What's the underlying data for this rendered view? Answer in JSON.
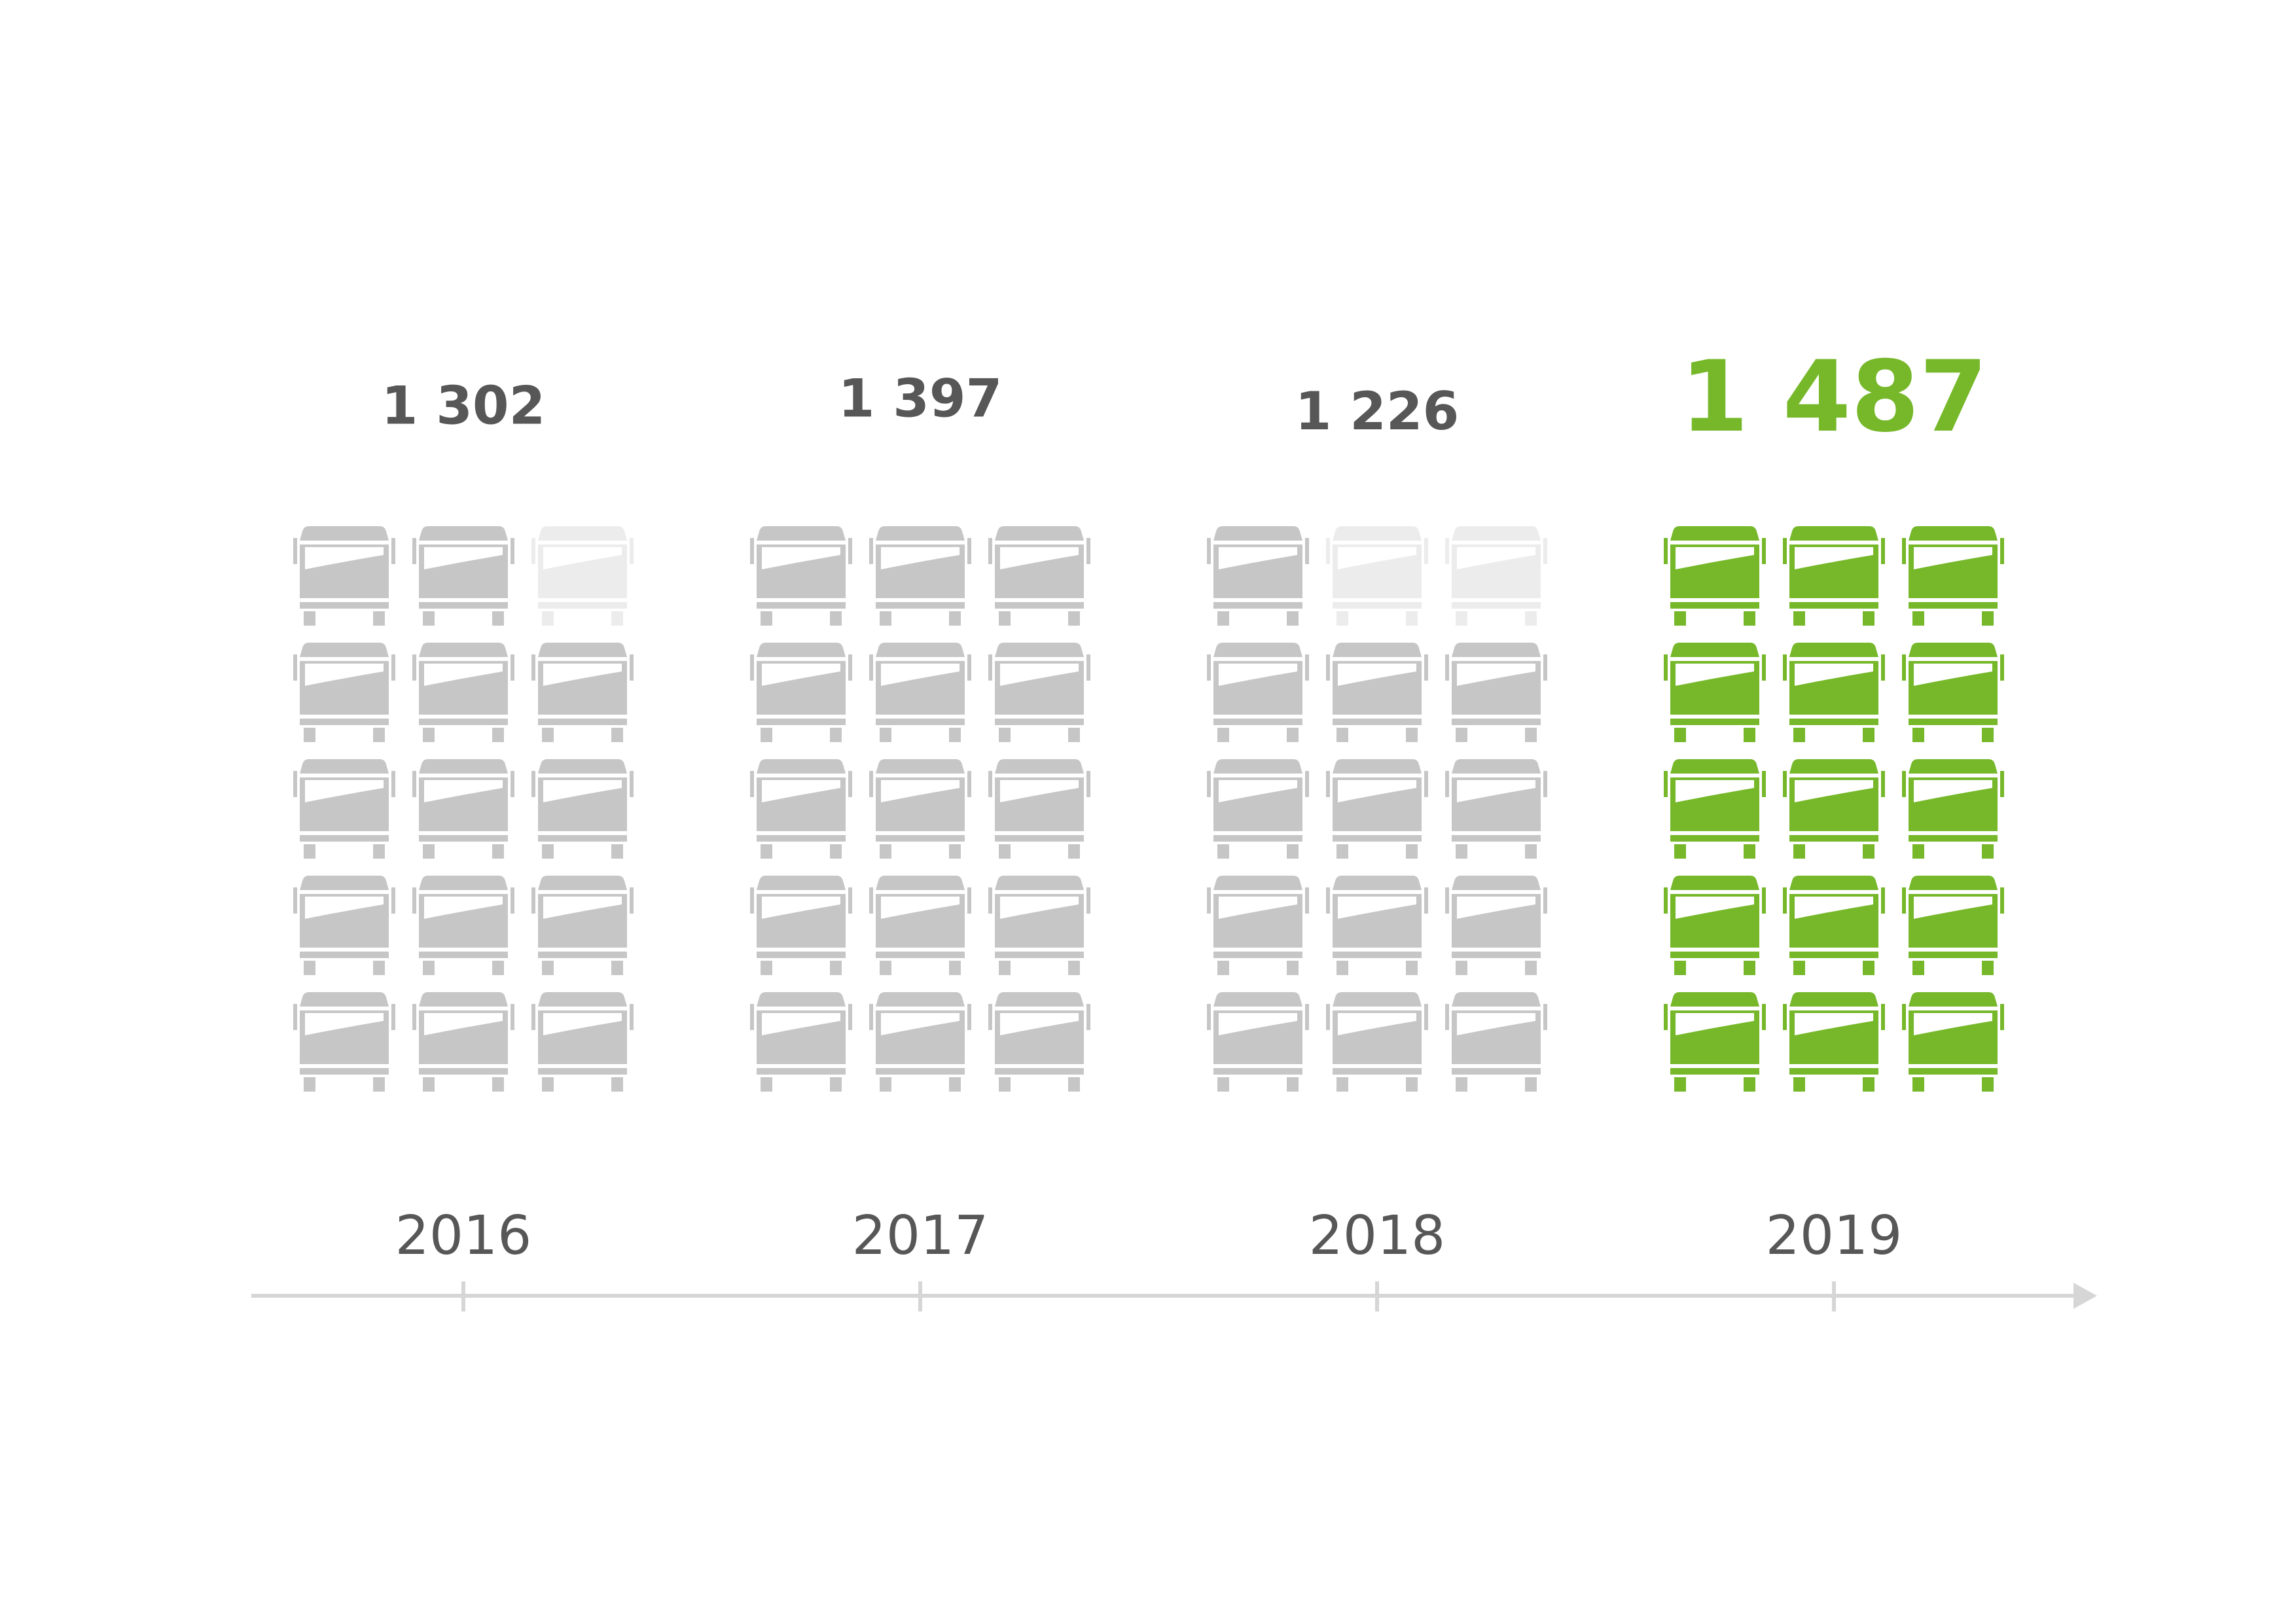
{
  "chart_data": {
    "type": "bar",
    "title": "",
    "xlabel": "",
    "ylabel": "",
    "categories": [
      "2016",
      "2017",
      "2018",
      "2019"
    ],
    "values": [
      1302,
      1397,
      1226,
      1487
    ],
    "value_labels": [
      "1 302",
      "1 397",
      "1 226",
      "1 487"
    ],
    "highlight_category": "2019",
    "icon": "bus-front-icon",
    "icons_per_column": 15,
    "grid": false,
    "legend": "none"
  },
  "colors": {
    "muted_label": "#575757",
    "year_label": "#575757",
    "axis": "#d6d6d6",
    "icon_full": "#c6c6c6",
    "icon_faded": "#ececec",
    "highlight": "#76b82a",
    "highlight_faded": "#eeeeee"
  }
}
